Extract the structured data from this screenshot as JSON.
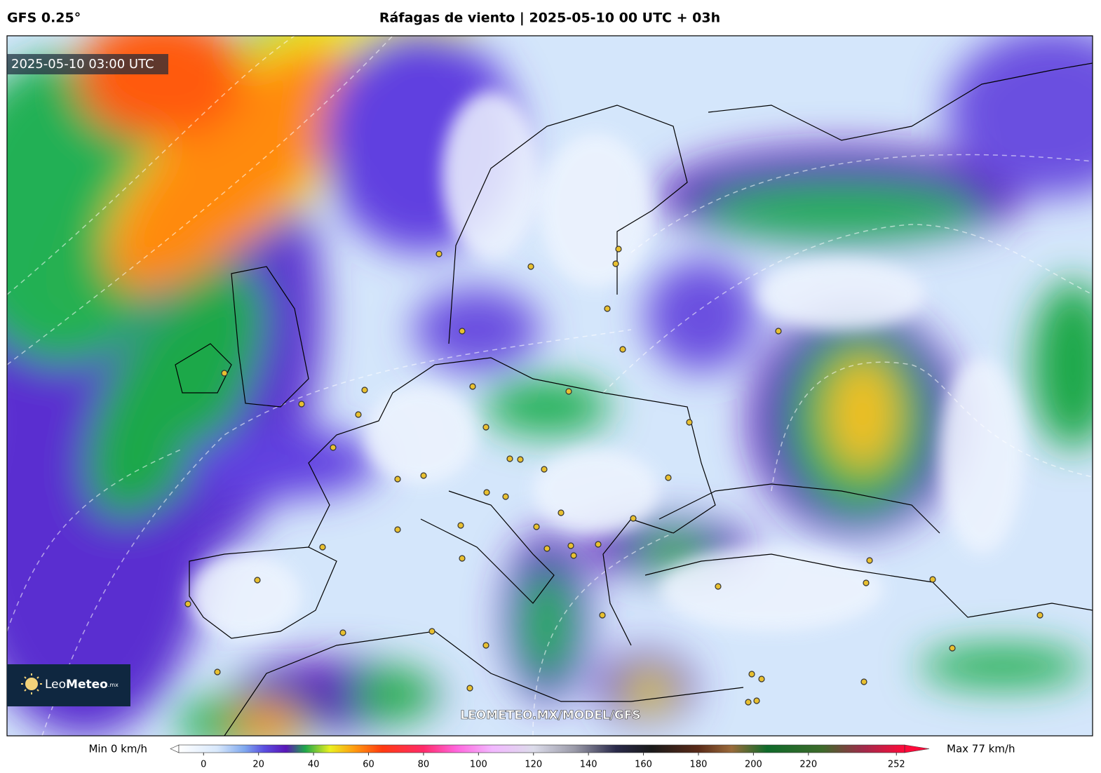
{
  "header": {
    "model": "GFS 0.25°",
    "title": "Ráfagas de viento | 2025-05-10 00 UTC + 03h"
  },
  "map": {
    "timestamp": "2025-05-10 03:00 UTC",
    "watermark": "LEOMETEO.MX/MODEL/GFS",
    "logo": {
      "light": "Leo",
      "bold": "Meteo",
      "suffix": ".mx"
    }
  },
  "colorbar": {
    "min_label": "Min 0 km/h",
    "max_label": "Max 77 km/h",
    "lim": [
      -9,
      255
    ],
    "ticks": [
      0,
      20,
      40,
      60,
      80,
      100,
      120,
      140,
      160,
      180,
      200,
      220,
      252
    ],
    "stops": [
      {
        "value": -9,
        "color": "#ffffff"
      },
      {
        "value": 5,
        "color": "#d8e8fb"
      },
      {
        "value": 15,
        "color": "#7fa8ee"
      },
      {
        "value": 22,
        "color": "#5b4fe0"
      },
      {
        "value": 30,
        "color": "#5a16b8"
      },
      {
        "value": 37,
        "color": "#1fa84a"
      },
      {
        "value": 46,
        "color": "#eaf020"
      },
      {
        "value": 55,
        "color": "#ff9a10"
      },
      {
        "value": 65,
        "color": "#ff3a10"
      },
      {
        "value": 80,
        "color": "#ff2a6a"
      },
      {
        "value": 92,
        "color": "#ff66dd"
      },
      {
        "value": 105,
        "color": "#f2b8ff"
      },
      {
        "value": 120,
        "color": "#dcdcea"
      },
      {
        "value": 135,
        "color": "#9a9aa8"
      },
      {
        "value": 150,
        "color": "#2a2a4a"
      },
      {
        "value": 163,
        "color": "#1a1a1a"
      },
      {
        "value": 180,
        "color": "#5a2a18"
      },
      {
        "value": 192,
        "color": "#9a6a3a"
      },
      {
        "value": 205,
        "color": "#0f6a2a"
      },
      {
        "value": 225,
        "color": "#3d6a2a"
      },
      {
        "value": 240,
        "color": "#a02a4a"
      },
      {
        "value": 255,
        "color": "#ff0a3a"
      }
    ]
  }
}
